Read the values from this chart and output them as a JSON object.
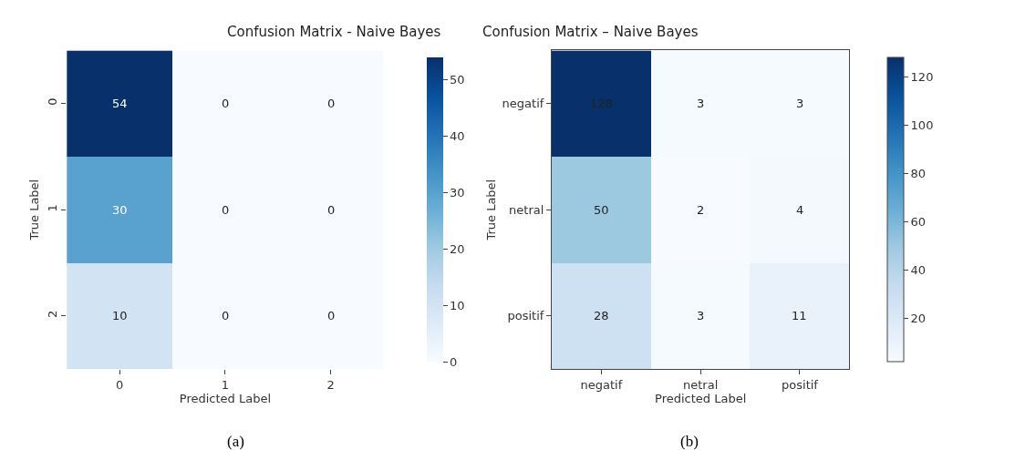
{
  "chart_data": [
    {
      "type": "heatmap",
      "title": "Confusion Matrix - Naive Bayes",
      "xlabel": "Predicted Label",
      "ylabel": "True Label",
      "categories": [
        "0",
        "1",
        "2"
      ],
      "y_categories": [
        "0",
        "1",
        "2"
      ],
      "cells": [
        [
          54,
          0,
          0
        ],
        [
          30,
          0,
          0
        ],
        [
          10,
          0,
          0
        ]
      ],
      "clim": [
        0,
        54
      ],
      "cticks": [
        0,
        10,
        20,
        30,
        40,
        50
      ],
      "data_labels": true,
      "annotations": [
        "(a)"
      ]
    },
    {
      "type": "heatmap",
      "title": "Confusion Matrix – Naive Bayes",
      "xlabel": "Predicted Label",
      "ylabel": "True Label",
      "categories": [
        "negatif",
        "netral",
        "positif"
      ],
      "y_categories": [
        "negatif",
        "netral",
        "positif"
      ],
      "cells": [
        [
          128,
          3,
          3
        ],
        [
          50,
          2,
          4
        ],
        [
          28,
          3,
          11
        ]
      ],
      "clim": [
        2,
        128
      ],
      "cticks": [
        20,
        40,
        60,
        80,
        100,
        120
      ],
      "data_labels": true,
      "annotations": [
        "(b)"
      ]
    }
  ]
}
